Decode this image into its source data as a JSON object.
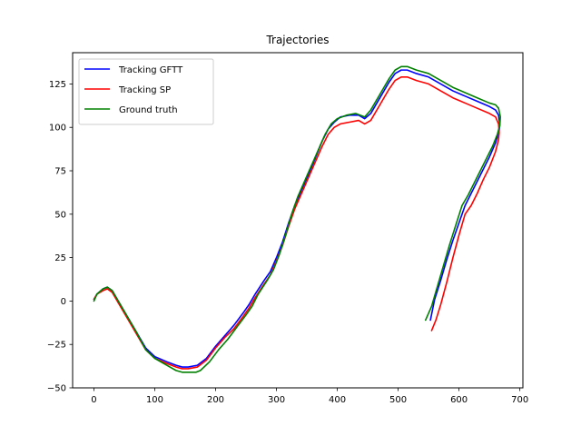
{
  "chart_data": {
    "type": "line",
    "title": "Trajectories",
    "xlabel": "",
    "ylabel": "",
    "xlim": [
      -35,
      705
    ],
    "ylim": [
      -50,
      143
    ],
    "xticks": [
      0,
      100,
      200,
      300,
      400,
      500,
      600,
      700
    ],
    "yticks": [
      -50,
      -25,
      0,
      25,
      50,
      75,
      100,
      125
    ],
    "grid": false,
    "legend_position": "top-left",
    "series": [
      {
        "name": "Tracking GFTT",
        "color": "#0000ff",
        "points": [
          [
            0,
            1
          ],
          [
            5,
            4
          ],
          [
            15,
            7
          ],
          [
            22,
            8
          ],
          [
            30,
            6
          ],
          [
            40,
            0
          ],
          [
            55,
            -9
          ],
          [
            70,
            -18
          ],
          [
            85,
            -27
          ],
          [
            100,
            -32
          ],
          [
            120,
            -35
          ],
          [
            135,
            -37
          ],
          [
            145,
            -38
          ],
          [
            155,
            -38
          ],
          [
            170,
            -37
          ],
          [
            185,
            -33
          ],
          [
            200,
            -26
          ],
          [
            215,
            -20
          ],
          [
            230,
            -14
          ],
          [
            245,
            -7
          ],
          [
            255,
            -2
          ],
          [
            265,
            4
          ],
          [
            280,
            12
          ],
          [
            290,
            17
          ],
          [
            300,
            25
          ],
          [
            310,
            34
          ],
          [
            320,
            45
          ],
          [
            330,
            55
          ],
          [
            345,
            67
          ],
          [
            360,
            79
          ],
          [
            375,
            92
          ],
          [
            385,
            99
          ],
          [
            395,
            103
          ],
          [
            405,
            106
          ],
          [
            420,
            107
          ],
          [
            435,
            107
          ],
          [
            445,
            105
          ],
          [
            455,
            108
          ],
          [
            470,
            117
          ],
          [
            485,
            126
          ],
          [
            495,
            131
          ],
          [
            505,
            133
          ],
          [
            515,
            133
          ],
          [
            530,
            131
          ],
          [
            550,
            129
          ],
          [
            570,
            125
          ],
          [
            590,
            121
          ],
          [
            610,
            118
          ],
          [
            630,
            115
          ],
          [
            650,
            112
          ],
          [
            660,
            110
          ],
          [
            665,
            107
          ],
          [
            667,
            102
          ],
          [
            666,
            98
          ],
          [
            660,
            91
          ],
          [
            650,
            83
          ],
          [
            640,
            76
          ],
          [
            630,
            69
          ],
          [
            620,
            62
          ],
          [
            610,
            55
          ],
          [
            600,
            45
          ],
          [
            590,
            35
          ],
          [
            580,
            24
          ],
          [
            570,
            12
          ],
          [
            560,
            1
          ],
          [
            553,
            -11
          ]
        ]
      },
      {
        "name": "Tracking SP",
        "color": "#ff0000",
        "points": [
          [
            0,
            1
          ],
          [
            5,
            4
          ],
          [
            15,
            6
          ],
          [
            22,
            7
          ],
          [
            30,
            5
          ],
          [
            40,
            -1
          ],
          [
            55,
            -10
          ],
          [
            70,
            -19
          ],
          [
            85,
            -28
          ],
          [
            100,
            -33
          ],
          [
            120,
            -36
          ],
          [
            135,
            -38
          ],
          [
            145,
            -39
          ],
          [
            155,
            -39
          ],
          [
            170,
            -38
          ],
          [
            185,
            -34
          ],
          [
            200,
            -27
          ],
          [
            215,
            -21
          ],
          [
            230,
            -16
          ],
          [
            245,
            -9
          ],
          [
            255,
            -4
          ],
          [
            265,
            2
          ],
          [
            280,
            10
          ],
          [
            290,
            15
          ],
          [
            300,
            23
          ],
          [
            310,
            32
          ],
          [
            320,
            43
          ],
          [
            330,
            53
          ],
          [
            345,
            65
          ],
          [
            360,
            77
          ],
          [
            375,
            89
          ],
          [
            385,
            96
          ],
          [
            395,
            100
          ],
          [
            405,
            102
          ],
          [
            420,
            103
          ],
          [
            435,
            104
          ],
          [
            445,
            102
          ],
          [
            455,
            104
          ],
          [
            470,
            113
          ],
          [
            485,
            122
          ],
          [
            495,
            127
          ],
          [
            505,
            129
          ],
          [
            515,
            129
          ],
          [
            530,
            127
          ],
          [
            550,
            125
          ],
          [
            570,
            121
          ],
          [
            590,
            117
          ],
          [
            610,
            114
          ],
          [
            630,
            111
          ],
          [
            650,
            108
          ],
          [
            660,
            106
          ],
          [
            665,
            102
          ],
          [
            666,
            97
          ],
          [
            665,
            93
          ],
          [
            660,
            86
          ],
          [
            650,
            77
          ],
          [
            640,
            70
          ],
          [
            630,
            62
          ],
          [
            620,
            55
          ],
          [
            610,
            50
          ],
          [
            600,
            38
          ],
          [
            590,
            25
          ],
          [
            580,
            11
          ],
          [
            570,
            -2
          ],
          [
            562,
            -11
          ],
          [
            555,
            -17
          ]
        ]
      },
      {
        "name": "Ground truth",
        "color": "#008000",
        "points": [
          [
            0,
            0
          ],
          [
            5,
            4
          ],
          [
            15,
            7
          ],
          [
            22,
            8
          ],
          [
            30,
            6
          ],
          [
            40,
            0
          ],
          [
            55,
            -9
          ],
          [
            70,
            -18
          ],
          [
            85,
            -28
          ],
          [
            100,
            -33
          ],
          [
            120,
            -37
          ],
          [
            135,
            -40
          ],
          [
            145,
            -41
          ],
          [
            155,
            -41
          ],
          [
            168,
            -41
          ],
          [
            175,
            -40
          ],
          [
            190,
            -35
          ],
          [
            205,
            -28
          ],
          [
            220,
            -22
          ],
          [
            235,
            -15
          ],
          [
            250,
            -8
          ],
          [
            260,
            -3
          ],
          [
            270,
            4
          ],
          [
            285,
            12
          ],
          [
            295,
            18
          ],
          [
            305,
            27
          ],
          [
            315,
            38
          ],
          [
            325,
            50
          ],
          [
            335,
            60
          ],
          [
            350,
            72
          ],
          [
            365,
            84
          ],
          [
            380,
            96
          ],
          [
            390,
            102
          ],
          [
            400,
            105
          ],
          [
            415,
            107
          ],
          [
            430,
            108
          ],
          [
            445,
            106
          ],
          [
            455,
            110
          ],
          [
            470,
            119
          ],
          [
            485,
            128
          ],
          [
            495,
            133
          ],
          [
            505,
            135
          ],
          [
            515,
            135
          ],
          [
            530,
            133
          ],
          [
            550,
            131
          ],
          [
            570,
            127
          ],
          [
            590,
            123
          ],
          [
            610,
            120
          ],
          [
            630,
            117
          ],
          [
            650,
            114
          ],
          [
            660,
            113
          ],
          [
            665,
            111
          ],
          [
            668,
            106
          ],
          [
            667,
            101
          ],
          [
            663,
            96
          ],
          [
            655,
            89
          ],
          [
            645,
            82
          ],
          [
            635,
            75
          ],
          [
            625,
            68
          ],
          [
            615,
            61
          ],
          [
            605,
            55
          ],
          [
            595,
            44
          ],
          [
            585,
            33
          ],
          [
            575,
            21
          ],
          [
            565,
            9
          ],
          [
            555,
            -3
          ],
          [
            545,
            -11
          ]
        ]
      }
    ]
  }
}
